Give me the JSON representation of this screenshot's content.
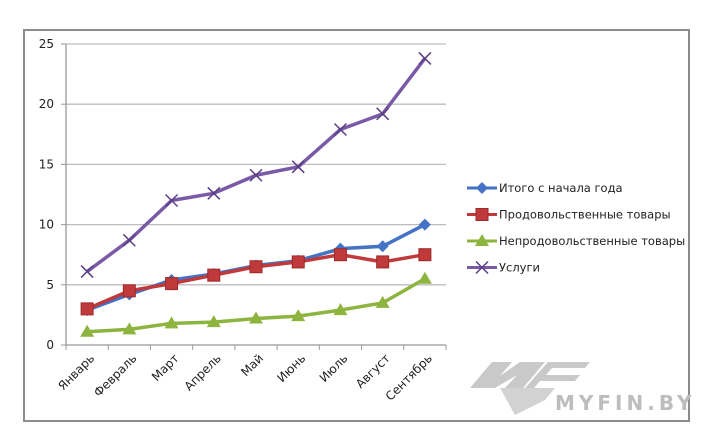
{
  "chart_data": {
    "type": "line",
    "title": "",
    "xlabel": "",
    "ylabel": "",
    "categories": [
      "Январь",
      "Февраль",
      "Март",
      "Апрель",
      "Май",
      "Июнь",
      "Июль",
      "Август",
      "Сентябрь"
    ],
    "ylim": [
      0,
      25
    ],
    "yticks": [
      0,
      5,
      10,
      15,
      20,
      25
    ],
    "grid": true,
    "legend_position": "right",
    "series": [
      {
        "name": "Итого с начала года",
        "color": "#4472c4",
        "marker": "diamond",
        "values": [
          2.9,
          4.2,
          5.4,
          5.9,
          6.6,
          7.0,
          8.0,
          8.2,
          10.0
        ]
      },
      {
        "name": "Продовольственные товары",
        "color": "#c0393b",
        "marker": "square",
        "values": [
          3.0,
          4.5,
          5.1,
          5.8,
          6.5,
          6.9,
          7.5,
          6.9,
          7.5
        ]
      },
      {
        "name": "Непродовольственные товары",
        "color": "#8db43e",
        "marker": "triangle",
        "values": [
          1.1,
          1.3,
          1.8,
          1.9,
          2.2,
          2.4,
          2.9,
          3.5,
          5.5
        ]
      },
      {
        "name": "Услуги",
        "color": "#7a5aa6",
        "marker": "x",
        "values": [
          6.1,
          8.7,
          12.0,
          12.6,
          14.1,
          14.8,
          17.9,
          19.2,
          23.8
        ]
      }
    ]
  },
  "watermark": "MYFIN.BY"
}
